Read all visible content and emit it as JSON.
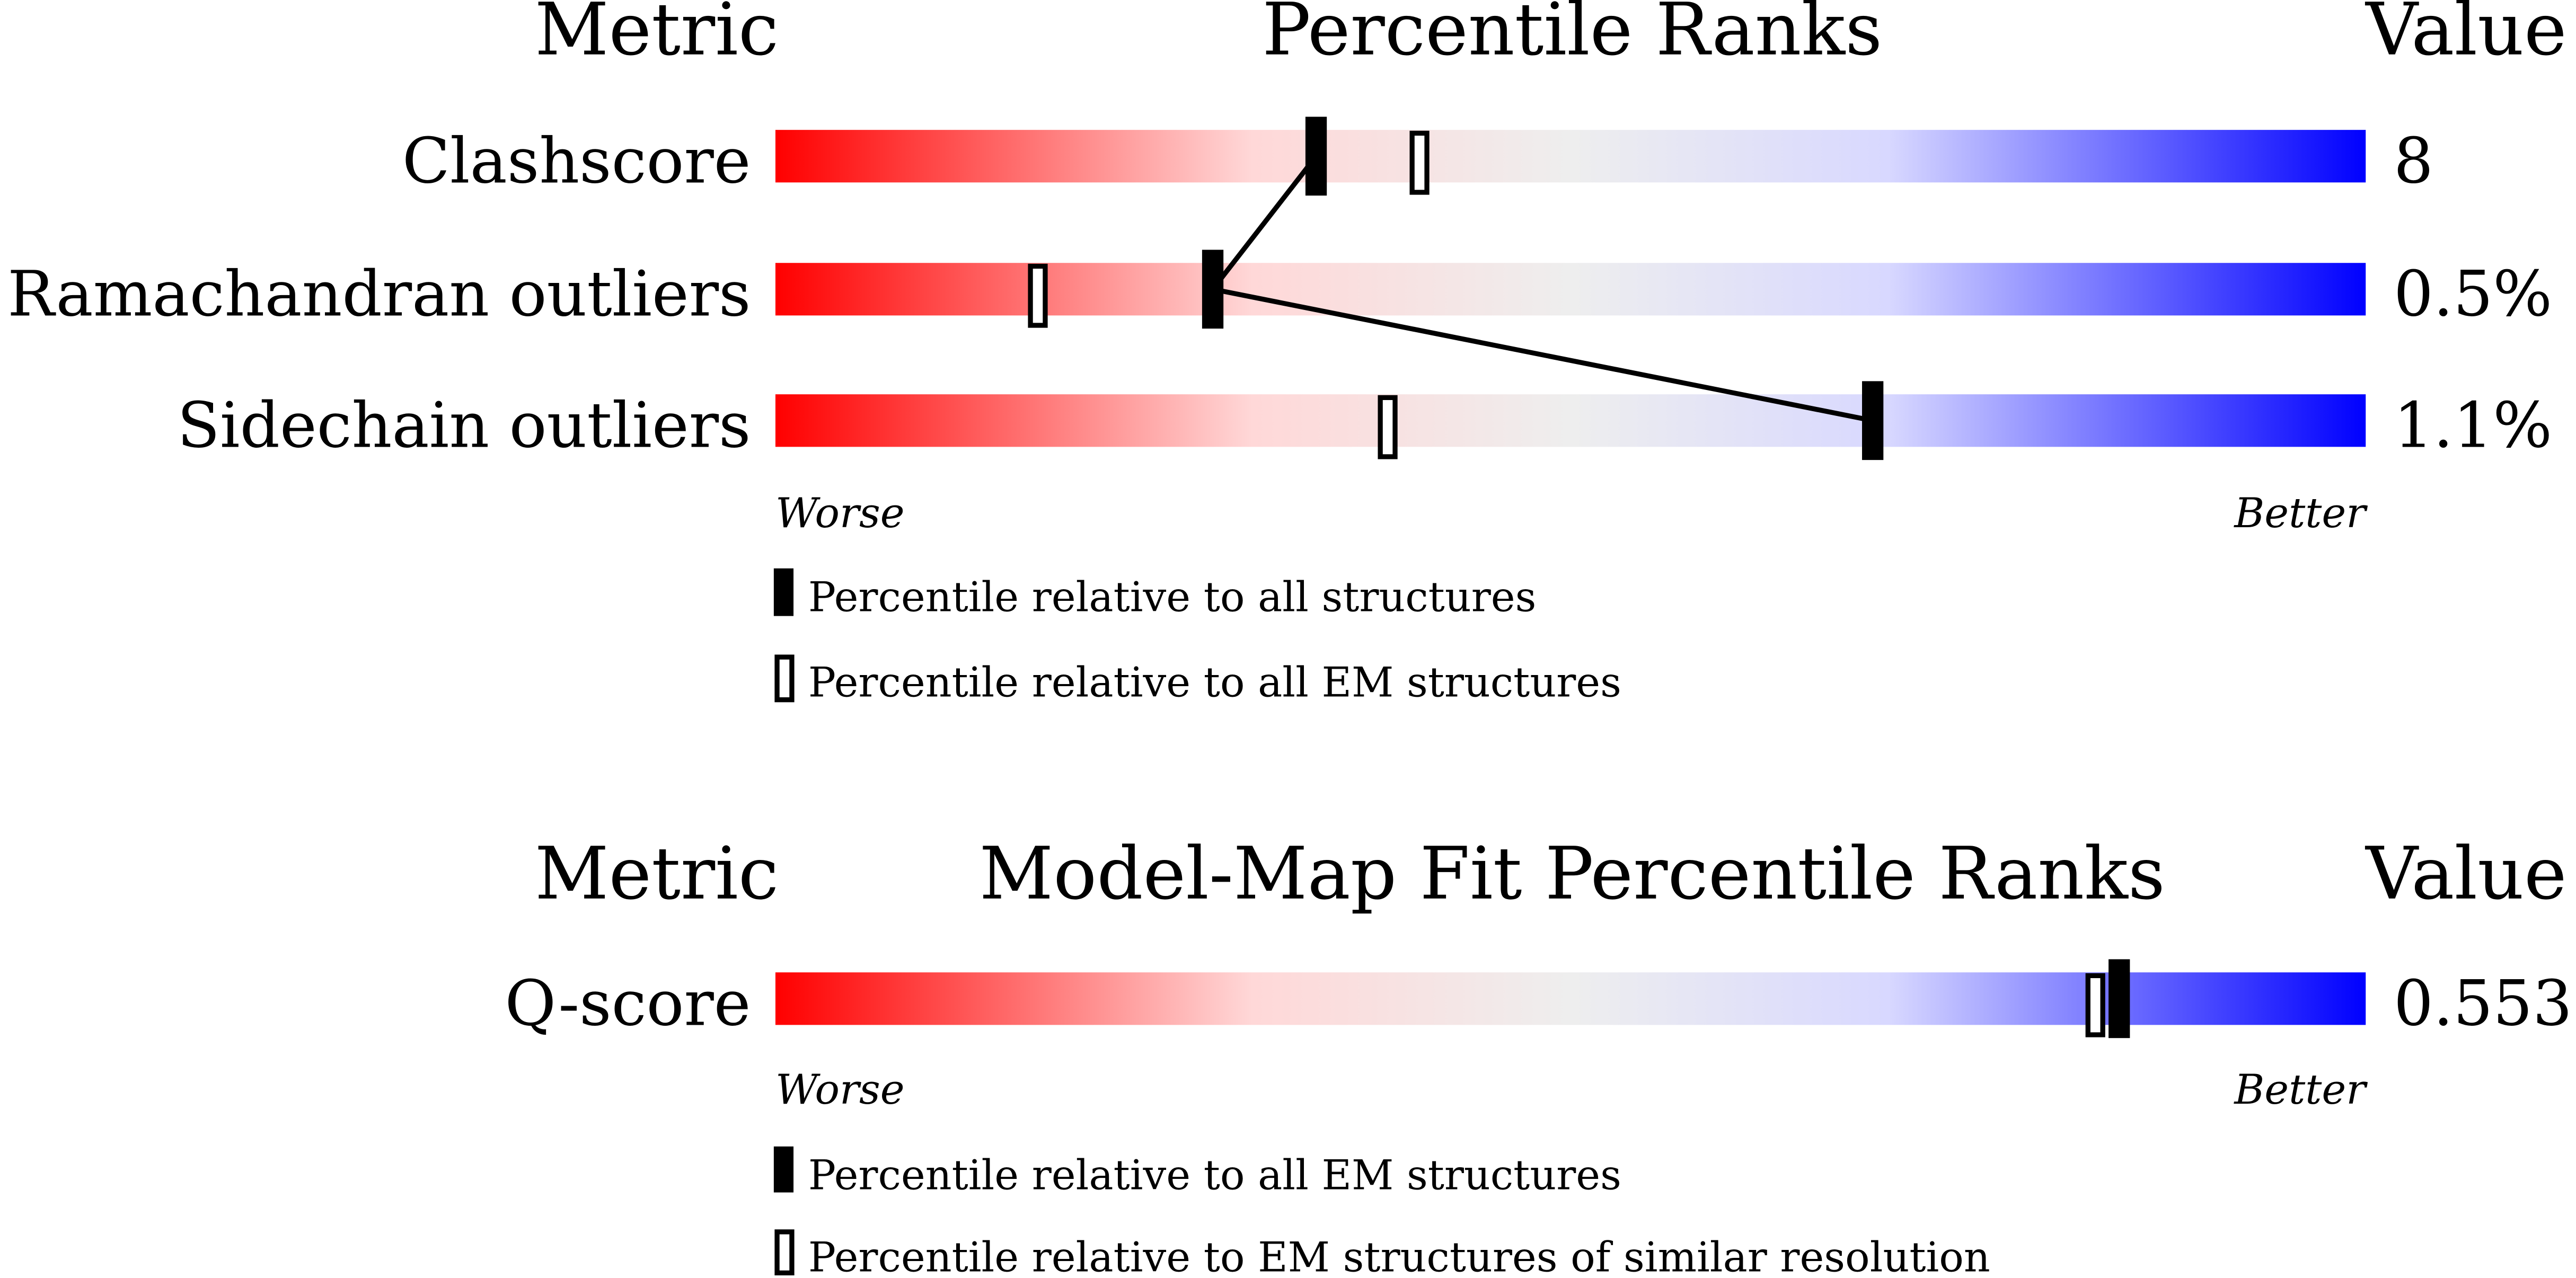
{
  "colors": {
    "worse": "#ff0000",
    "mid": "#eeeeee",
    "better": "#0000ff",
    "marker": "#000000"
  },
  "chart_data": [
    {
      "type": "percentile-ranks",
      "headers": {
        "metric": "Metric",
        "title": "Percentile Ranks",
        "value": "Value"
      },
      "axis": {
        "left": "Worse",
        "right": "Better",
        "range": [
          0,
          100
        ]
      },
      "rows": [
        {
          "metric": "Clashscore",
          "value": "8",
          "percentile_all": 34,
          "percentile_em": 40.5
        },
        {
          "metric": "Ramachandran outliers",
          "value": "0.5%",
          "percentile_all": 27.5,
          "percentile_em": 16.5
        },
        {
          "metric": "Sidechain outliers",
          "value": "1.1%",
          "percentile_all": 69,
          "percentile_em": 38.5
        }
      ],
      "legend": [
        {
          "symbol": "filled",
          "label": "Percentile relative to all structures"
        },
        {
          "symbol": "hollow",
          "label": "Percentile relative to all EM structures"
        }
      ]
    },
    {
      "type": "percentile-ranks",
      "headers": {
        "metric": "Metric",
        "title": "Model-Map Fit Percentile Ranks",
        "value": "Value"
      },
      "axis": {
        "left": "Worse",
        "right": "Better",
        "range": [
          0,
          100
        ]
      },
      "rows": [
        {
          "metric": "Q-score",
          "value": "0.553",
          "percentile_all": 84.5,
          "percentile_em": 83
        }
      ],
      "legend": [
        {
          "symbol": "filled",
          "label": "Percentile relative to all EM structures"
        },
        {
          "symbol": "hollow",
          "label": "Percentile relative to EM structures of similar resolution"
        }
      ]
    }
  ]
}
